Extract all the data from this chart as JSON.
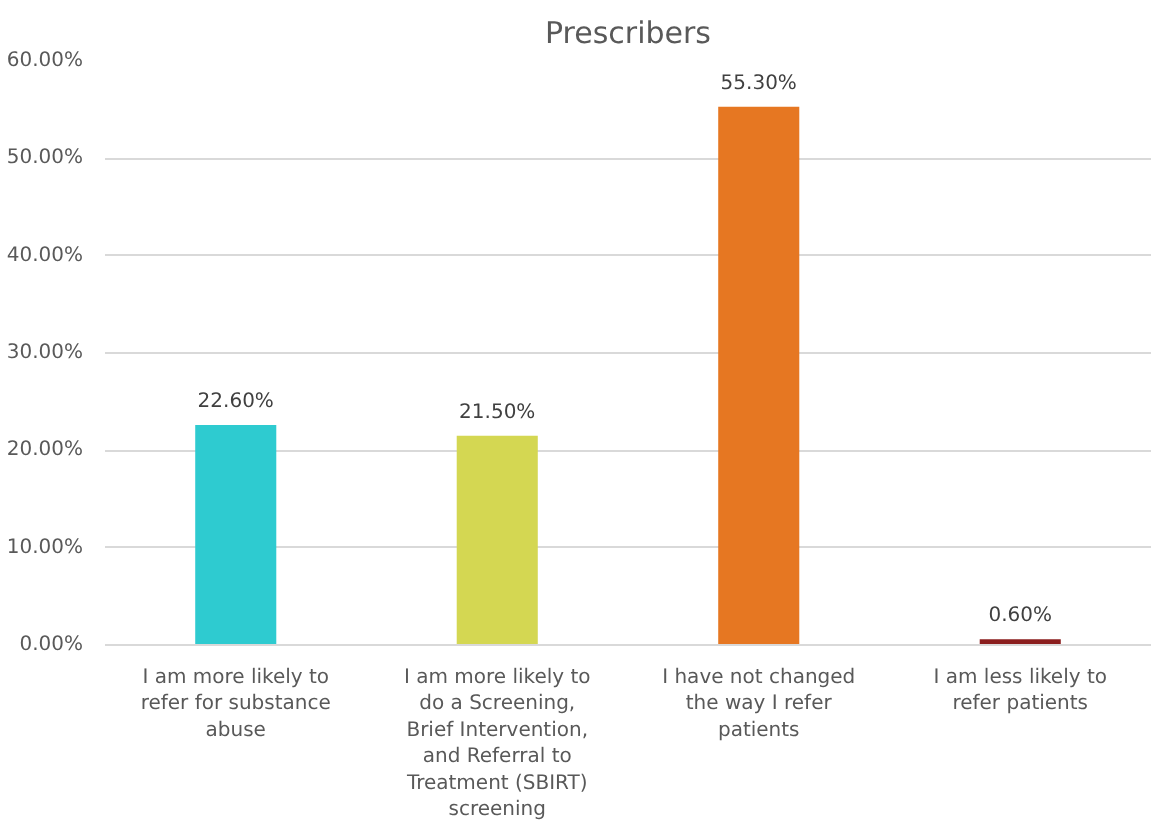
{
  "chart_data": {
    "type": "bar",
    "title": "Prescribers",
    "categories": [
      "I am more likely to refer for substance abuse",
      "I am more likely to do a Screening, Brief Intervention, and Referral to Treatment (SBIRT) screening",
      "I have not changed the way I refer patients",
      "I am less likely to refer patients"
    ],
    "values": [
      22.6,
      21.5,
      55.3,
      0.6
    ],
    "colors": [
      "#2ecbd0",
      "#d4d752",
      "#e67722",
      "#8b1e1e"
    ],
    "value_labels": [
      "22.60%",
      "21.50%",
      "55.30%",
      "0.60%"
    ],
    "ylim": [
      0,
      60
    ],
    "yticks": [
      {
        "value": 0,
        "label": "0.00%"
      },
      {
        "value": 10,
        "label": "10.00%"
      },
      {
        "value": 20,
        "label": "20.00%"
      },
      {
        "value": 30,
        "label": "30.00%"
      },
      {
        "value": 40,
        "label": "40.00%"
      },
      {
        "value": 50,
        "label": "50.00%"
      },
      {
        "value": 60,
        "label": "60.00%"
      }
    ],
    "grid": "y"
  }
}
